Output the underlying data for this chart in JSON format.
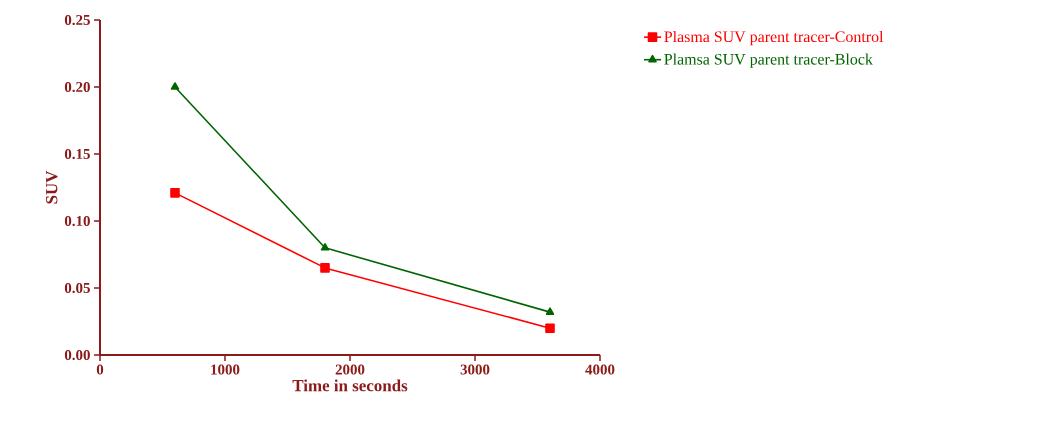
{
  "chart_data": {
    "type": "line",
    "xlabel": "Time in seconds",
    "ylabel": "SUV",
    "x": [
      600,
      1800,
      3600
    ],
    "series": [
      {
        "name": "Plasma SUV parent tracer-Control",
        "color": "#ff0000",
        "marker": "square",
        "values": [
          0.121,
          0.065,
          0.02
        ]
      },
      {
        "name": "Plamsa SUV parent tracer-Block",
        "color": "#006400",
        "marker": "triangle",
        "values": [
          0.2,
          0.08,
          0.032
        ]
      }
    ],
    "xlim": [
      0,
      4000
    ],
    "xticks": [
      0,
      1000,
      2000,
      3000,
      4000
    ],
    "ylim": [
      0,
      0.25
    ],
    "yticks": [
      {
        "value": 0,
        "label": "0.00"
      },
      {
        "value": 0.05,
        "label": "0.05"
      },
      {
        "value": 0.1,
        "label": "0.10"
      },
      {
        "value": 0.15,
        "label": "0.15"
      },
      {
        "value": 0.2,
        "label": "0.20"
      },
      {
        "value": 0.25,
        "label": "0.25"
      }
    ],
    "grid": false,
    "legend": "top right",
    "line_style": "solid"
  }
}
